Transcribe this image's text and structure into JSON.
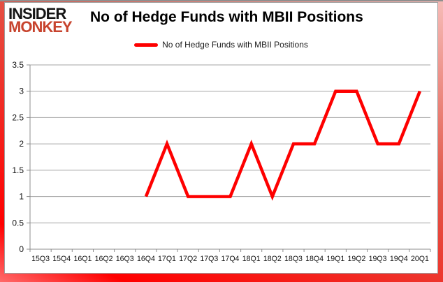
{
  "brand": {
    "line1": "INSIDER",
    "line2": "MONKEY"
  },
  "header": {
    "title": "No of Hedge Funds with MBII Positions"
  },
  "legend": {
    "label": "No of Hedge Funds with MBII Positions"
  },
  "colors": {
    "series_line": "#fe0000",
    "brand_insider": "#151515",
    "brand_monkey": "#c7432d",
    "gridline": "#a6a6a6",
    "axis": "#8c8c8c",
    "frame_red": "#ff0000",
    "text": "#111111"
  },
  "chart_data": {
    "type": "line",
    "title": "No of Hedge Funds with MBII Positions",
    "categories": [
      "15Q3",
      "15Q4",
      "16Q1",
      "16Q2",
      "16Q3",
      "16Q4",
      "17Q1",
      "17Q2",
      "17Q3",
      "17Q4",
      "18Q1",
      "18Q2",
      "18Q3",
      "18Q4",
      "19Q1",
      "19Q2",
      "19Q3",
      "19Q4",
      "20Q1"
    ],
    "series": [
      {
        "name": "No of Hedge Funds with MBII Positions",
        "values": [
          null,
          null,
          null,
          null,
          null,
          1,
          2,
          1,
          1,
          1,
          2,
          1,
          2,
          2,
          3,
          3,
          2,
          2,
          3
        ]
      }
    ],
    "xlabel": "",
    "ylabel": "",
    "ylim": [
      0,
      3.5
    ],
    "ytick_step": 0.5,
    "grid": true,
    "legend_position": "top-center"
  }
}
